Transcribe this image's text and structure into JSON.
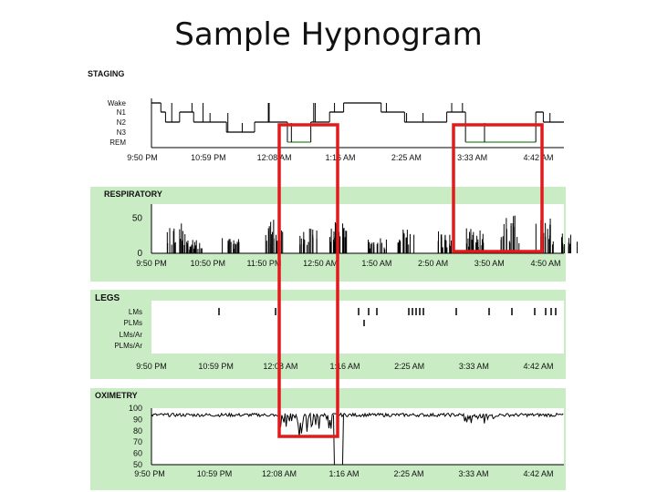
{
  "page_title": "Sample Hypnogram",
  "colors": {
    "panel_green": "#c9ecc4",
    "plot_bg": "#ffffff",
    "trace": "#000000",
    "rem_trace": "#2e8b2e",
    "highlight": "#e31a1c"
  },
  "chart_data": [
    {
      "type": "line",
      "title": "STAGING",
      "y_categories": [
        "Wake",
        "N1",
        "N2",
        "N3",
        "REM"
      ],
      "x_tick_labels": [
        "9:50 PM",
        "10:59 PM",
        "12:08 AM",
        "1:16 AM",
        "2:25 AM",
        "3:33 AM",
        "4:42 AM"
      ],
      "stage_steps": [
        {
          "t": "9:50 PM",
          "stage": "Wake"
        },
        {
          "t": "10:00 PM",
          "stage": "N1"
        },
        {
          "t": "10:05 PM",
          "stage": "N2"
        },
        {
          "t": "10:20 PM",
          "stage": "N1"
        },
        {
          "t": "10:35 PM",
          "stage": "N2"
        },
        {
          "t": "11:10 PM",
          "stage": "N3"
        },
        {
          "t": "11:40 PM",
          "stage": "N2"
        },
        {
          "t": "12:15 AM",
          "stage": "REM"
        },
        {
          "t": "12:40 AM",
          "stage": "N2"
        },
        {
          "t": "1:00 AM",
          "stage": "N1"
        },
        {
          "t": "1:15 AM",
          "stage": "Wake"
        },
        {
          "t": "1:55 AM",
          "stage": "N1"
        },
        {
          "t": "2:20 AM",
          "stage": "N2"
        },
        {
          "t": "3:05 AM",
          "stage": "N1"
        },
        {
          "t": "3:25 AM",
          "stage": "REM"
        },
        {
          "t": "4:40 AM",
          "stage": "N1"
        },
        {
          "t": "4:48 AM",
          "stage": "N2"
        }
      ]
    },
    {
      "type": "line",
      "title": "RESPIRATORY",
      "x_tick_labels": [
        "9:50 PM",
        "10:50 PM",
        "11:50 PM",
        "12:50 AM",
        "1:50 AM",
        "2:50 AM",
        "3:50 AM",
        "4:50 AM"
      ],
      "y_tick_labels": [
        "50",
        "0"
      ],
      "ylim": [
        0,
        70
      ],
      "burst_events": [
        {
          "t": "10:15 PM",
          "peak": 46
        },
        {
          "t": "10:35 PM",
          "peak": 20
        },
        {
          "t": "11:10 PM",
          "peak": 22
        },
        {
          "t": "11:55 PM",
          "peak": 48
        },
        {
          "t": "12:30 AM",
          "peak": 38
        },
        {
          "t": "1:00 AM",
          "peak": 45
        },
        {
          "t": "1:40 AM",
          "peak": 22
        },
        {
          "t": "2:10 AM",
          "peak": 35
        },
        {
          "t": "2:50 AM",
          "peak": 32
        },
        {
          "t": "3:20 AM",
          "peak": 36
        },
        {
          "t": "3:55 AM",
          "peak": 55
        },
        {
          "t": "4:30 AM",
          "peak": 50
        },
        {
          "t": "4:55 AM",
          "peak": 30
        }
      ]
    },
    {
      "type": "scatter",
      "title": "LEGS",
      "rows": [
        "LMs",
        "PLMs",
        "LMs/Ar",
        "PLMs/Ar"
      ],
      "x_tick_labels": [
        "9:50 PM",
        "10:59 PM",
        "12:08 AM",
        "1:16 AM",
        "2:25 AM",
        "3:33 AM",
        "4:42 AM"
      ]
    },
    {
      "type": "line",
      "title": "OXIMETRY",
      "y_tick_labels": [
        "100",
        "90",
        "80",
        "70",
        "60",
        "50"
      ],
      "ylim": [
        50,
        100
      ],
      "x_tick_labels": [
        "9:50 PM",
        "10:59 PM",
        "12:08 AM",
        "1:16 AM",
        "2:25 AM",
        "3:33 AM",
        "4:42 AM"
      ],
      "spo2_baseline": 94,
      "desaturations": [
        {
          "t": "12:15 AM",
          "min": 80
        },
        {
          "t": "12:45 AM",
          "min": 78
        },
        {
          "t": "1:10 AM",
          "min": 50
        },
        {
          "t": "3:40 AM",
          "min": 86
        }
      ]
    }
  ]
}
